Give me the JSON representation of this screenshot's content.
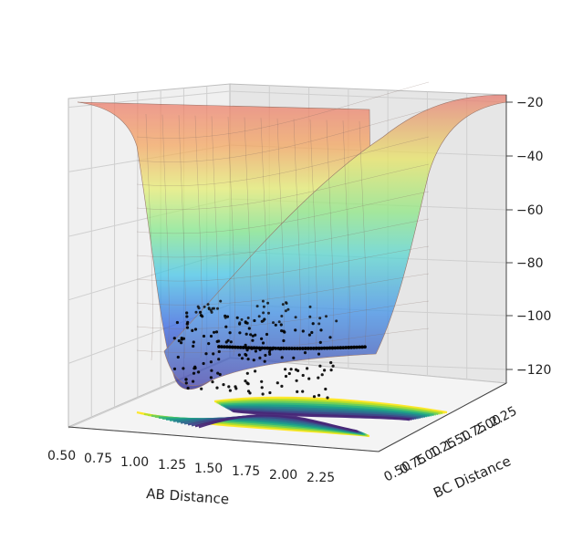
{
  "chart_data": {
    "type": "surface3d",
    "title": "",
    "xlabel": "AB Distance",
    "ylabel": "BC Distance",
    "zlabel": "",
    "x_ticks": [
      "0.50",
      "0.75",
      "1.00",
      "1.25",
      "1.50",
      "1.75",
      "2.00",
      "2.25"
    ],
    "y_ticks": [
      "0.50",
      "0.75",
      "1.00",
      "1.25",
      "1.50",
      "1.75",
      "2.00",
      "2.25"
    ],
    "z_ticks": [
      "−20",
      "−40",
      "−60",
      "−80",
      "−100",
      "−120"
    ],
    "xlim": [
      0.5,
      2.4
    ],
    "ylim": [
      0.5,
      2.4
    ],
    "zlim": [
      -130,
      -20
    ],
    "surface_colormap": "jet",
    "contour_colormap": "viridis",
    "trajectory_color": "#000000",
    "grid": true
  }
}
